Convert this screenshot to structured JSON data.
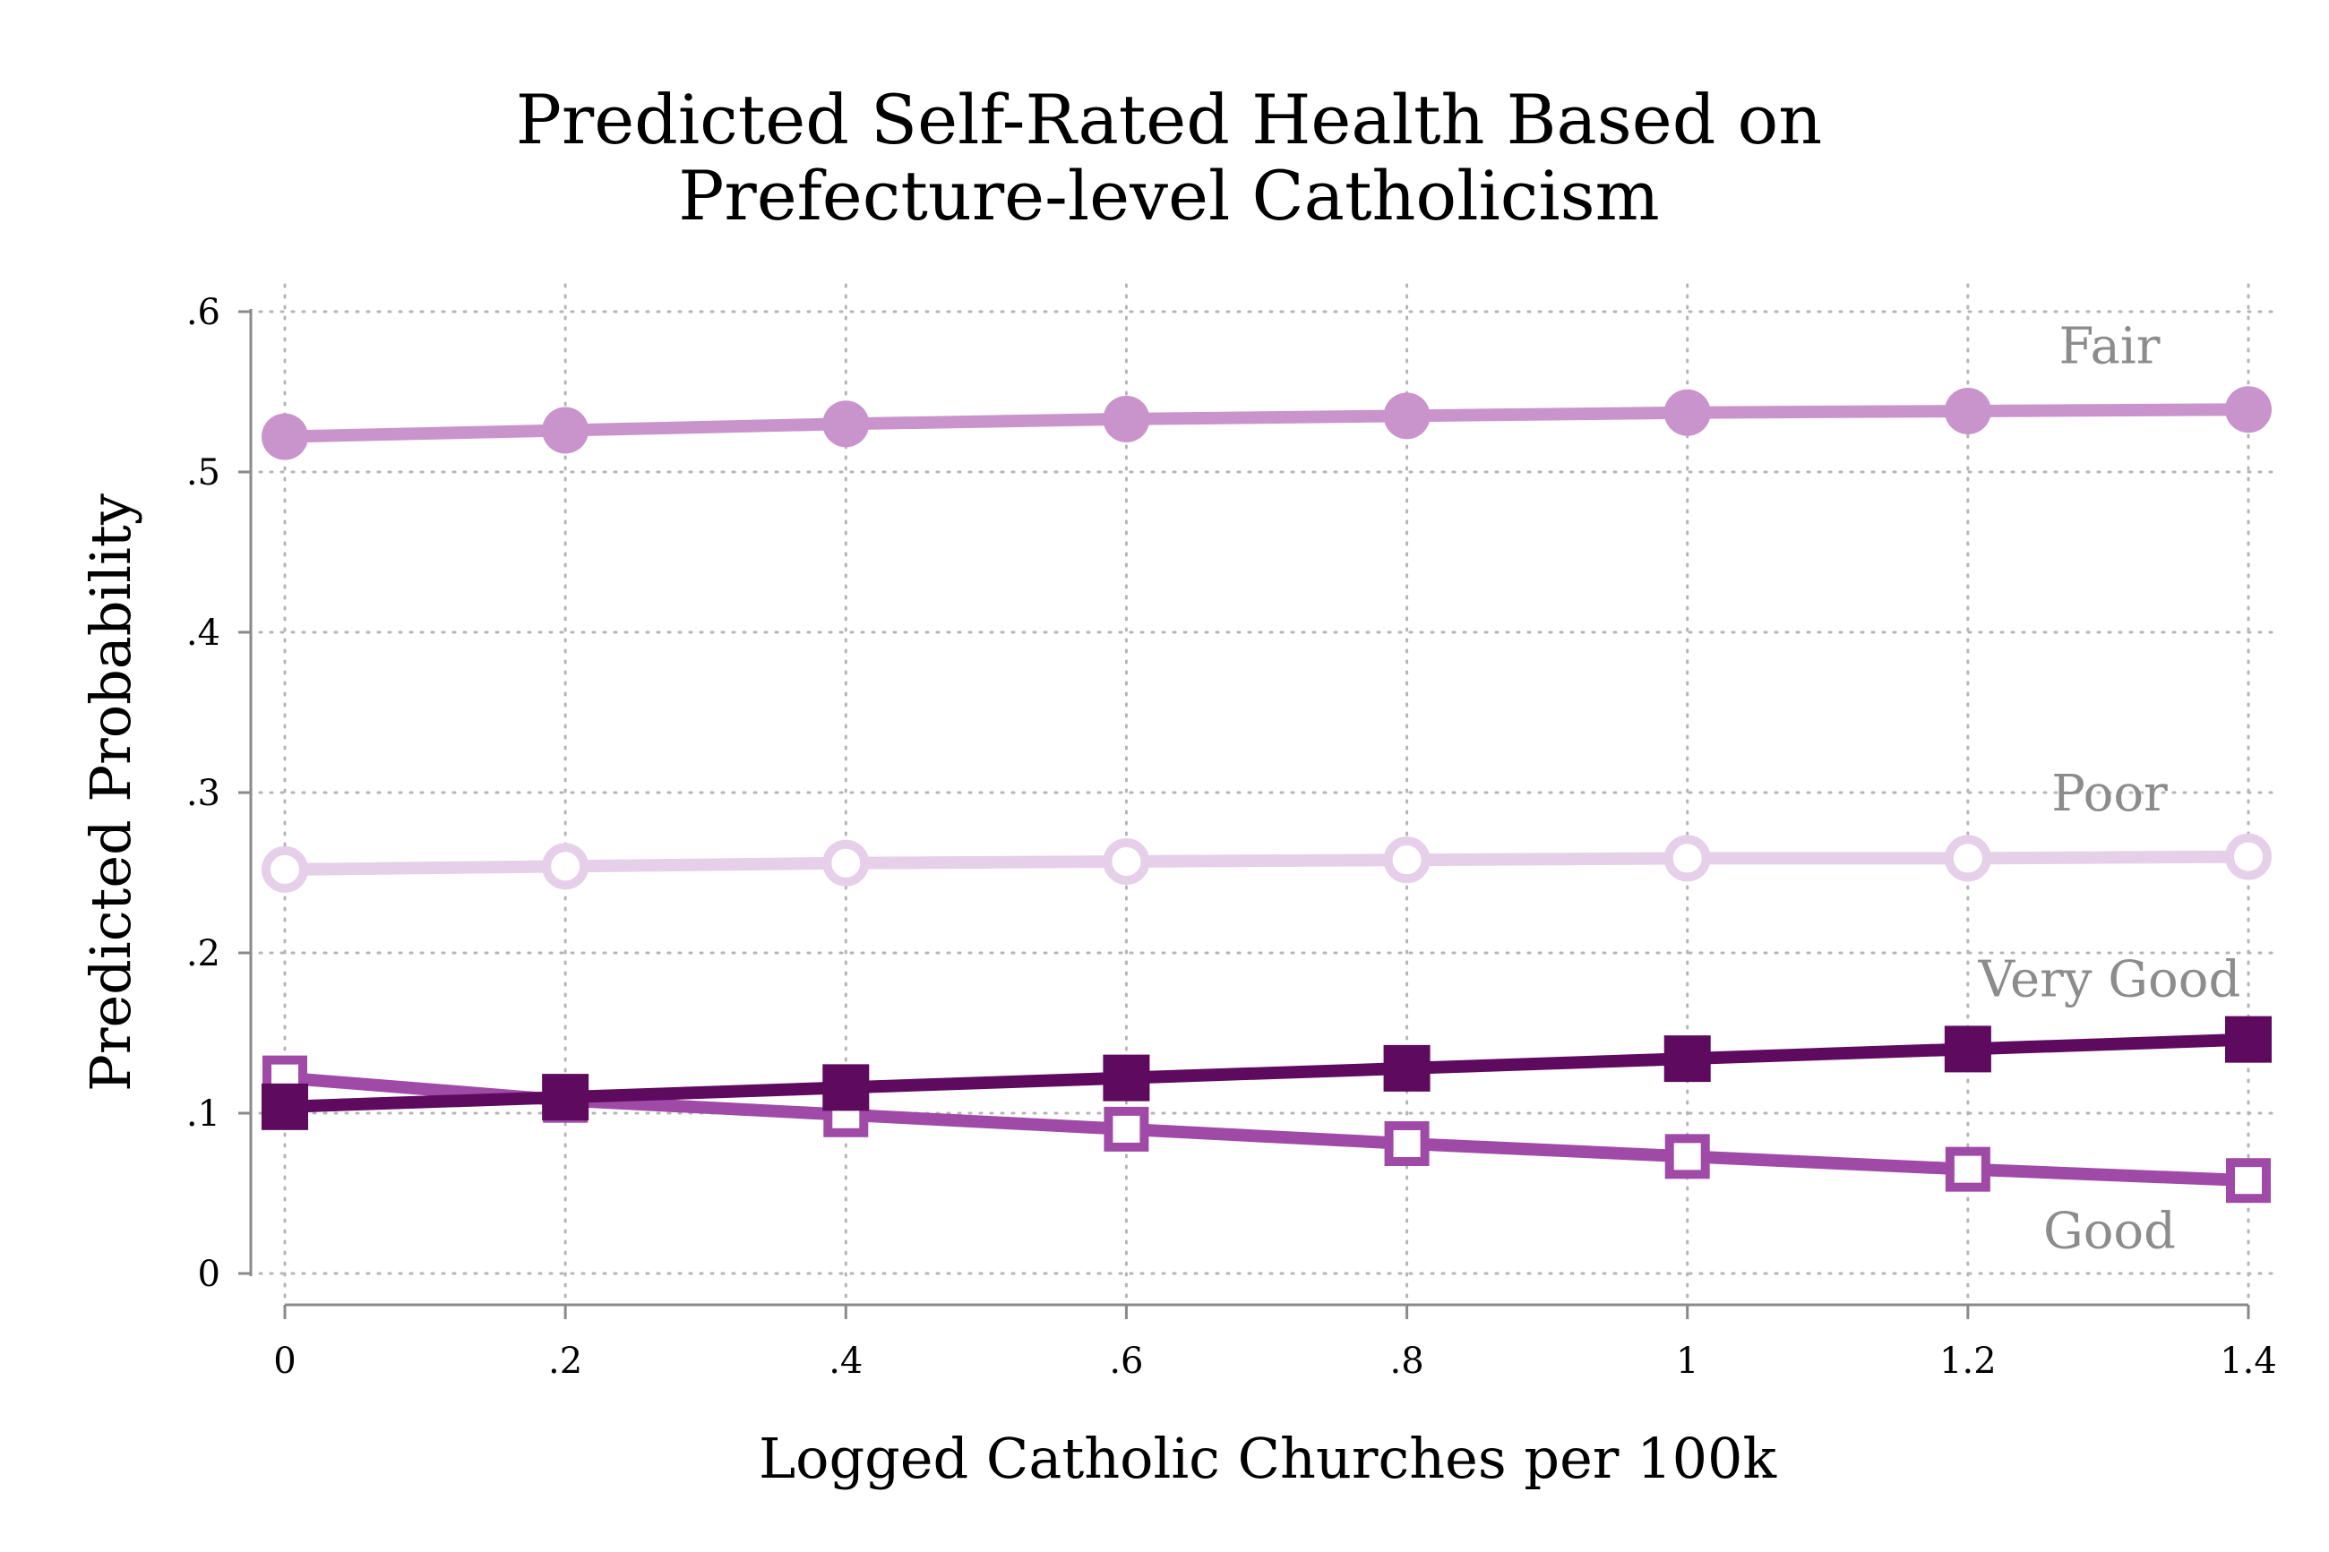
{
  "chart_data": {
    "type": "line",
    "title": [
      "Predicted Self-Rated Health Based on",
      "Prefecture-level Catholicism"
    ],
    "xlabel": "Logged Catholic Churches per 100k",
    "ylabel": "Predicted Probability",
    "xlim": [
      0,
      1.4
    ],
    "ylim": [
      0,
      0.6
    ],
    "x": [
      0,
      0.2,
      0.4,
      0.6,
      0.8,
      1.0,
      1.2,
      1.4
    ],
    "x_ticks": [
      {
        "value": 0,
        "label": "0"
      },
      {
        "value": 0.2,
        "label": ".2"
      },
      {
        "value": 0.4,
        "label": ".4"
      },
      {
        "value": 0.6,
        "label": ".6"
      },
      {
        "value": 0.8,
        "label": ".8"
      },
      {
        "value": 1.0,
        "label": "1"
      },
      {
        "value": 1.2,
        "label": "1.2"
      },
      {
        "value": 1.4,
        "label": "1.4"
      }
    ],
    "y_ticks": [
      {
        "value": 0,
        "label": "0"
      },
      {
        "value": 0.1,
        "label": ".1"
      },
      {
        "value": 0.2,
        "label": ".2"
      },
      {
        "value": 0.3,
        "label": ".3"
      },
      {
        "value": 0.4,
        "label": ".4"
      },
      {
        "value": 0.5,
        "label": ".5"
      },
      {
        "value": 0.6,
        "label": ".6"
      }
    ],
    "grid": "dotted",
    "legend": "inline labels at right end of each series",
    "series": [
      {
        "name": "Fair",
        "values": [
          0.522,
          0.526,
          0.53,
          0.533,
          0.535,
          0.537,
          0.538,
          0.539
        ],
        "color": "#c994cc",
        "marker": "filled-circle",
        "label_value": 0.579
      },
      {
        "name": "Poor",
        "values": [
          0.252,
          0.254,
          0.256,
          0.257,
          0.258,
          0.259,
          0.259,
          0.26
        ],
        "color": "#e6cfe9",
        "marker": "hollow-circle",
        "label_value": 0.3
      },
      {
        "name": "Very Good",
        "values": [
          0.104,
          0.11,
          0.116,
          0.122,
          0.128,
          0.134,
          0.14,
          0.146
        ],
        "color": "#5e0a5e",
        "marker": "filled-square",
        "label_value": 0.184
      },
      {
        "name": "Good",
        "values": [
          0.122,
          0.108,
          0.099,
          0.09,
          0.081,
          0.073,
          0.065,
          0.058
        ],
        "color": "#a04aa8",
        "marker": "hollow-square",
        "label_value": 0.027
      }
    ]
  }
}
